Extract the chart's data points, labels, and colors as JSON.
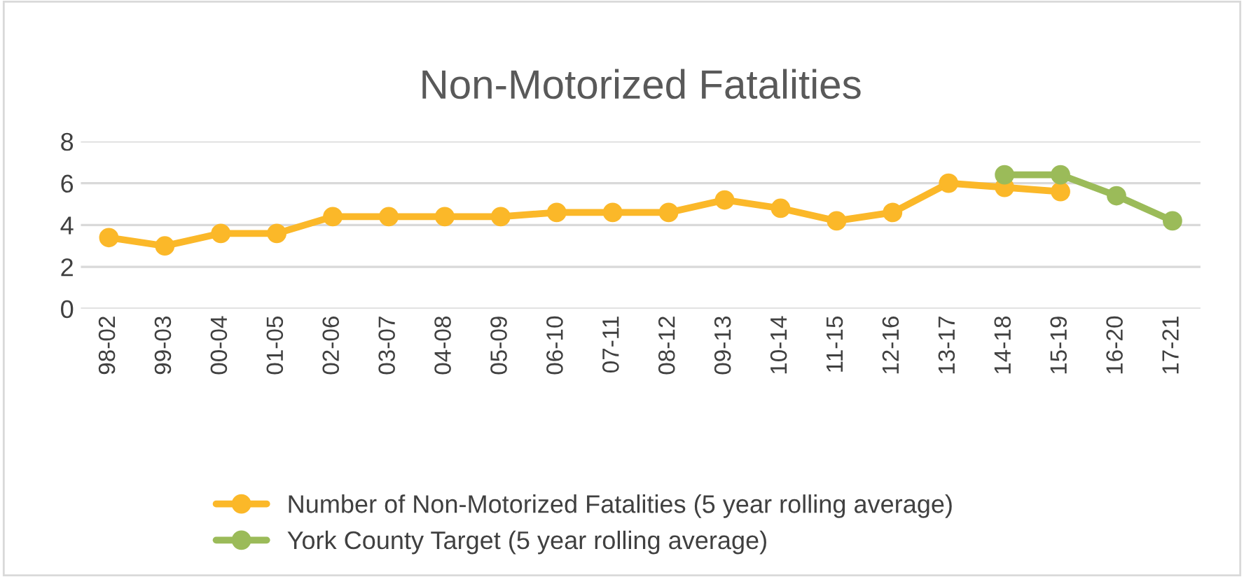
{
  "chart_data": {
    "type": "line",
    "title": "Non-Motorized Fatalities",
    "categories": [
      "98-02",
      "99-03",
      "00-04",
      "01-05",
      "02-06",
      "03-07",
      "04-08",
      "05-09",
      "06-10",
      "07-11",
      "08-12",
      "09-13",
      "10-14",
      "11-15",
      "12-16",
      "13-17",
      "14-18",
      "15-19",
      "16-20",
      "17-21"
    ],
    "series": [
      {
        "name": "Number of Non-Motorized Fatalities (5 year rolling average)",
        "color": "#fbb829",
        "values": [
          3.4,
          3.0,
          3.6,
          3.6,
          4.4,
          4.4,
          4.4,
          4.4,
          4.6,
          4.6,
          4.6,
          5.2,
          4.8,
          4.2,
          4.6,
          6.0,
          5.8,
          5.6,
          null,
          null
        ]
      },
      {
        "name": "York County Target (5 year rolling average)",
        "color": "#9bbb59",
        "values": [
          null,
          null,
          null,
          null,
          null,
          null,
          null,
          null,
          null,
          null,
          null,
          null,
          null,
          null,
          null,
          null,
          6.4,
          6.4,
          5.4,
          4.2
        ]
      }
    ],
    "ylim": [
      0,
      8
    ],
    "yticks": [
      0,
      2,
      4,
      6,
      8
    ],
    "grid": "y",
    "legend": "bottom",
    "marker": "circle",
    "line_style": "solid"
  }
}
